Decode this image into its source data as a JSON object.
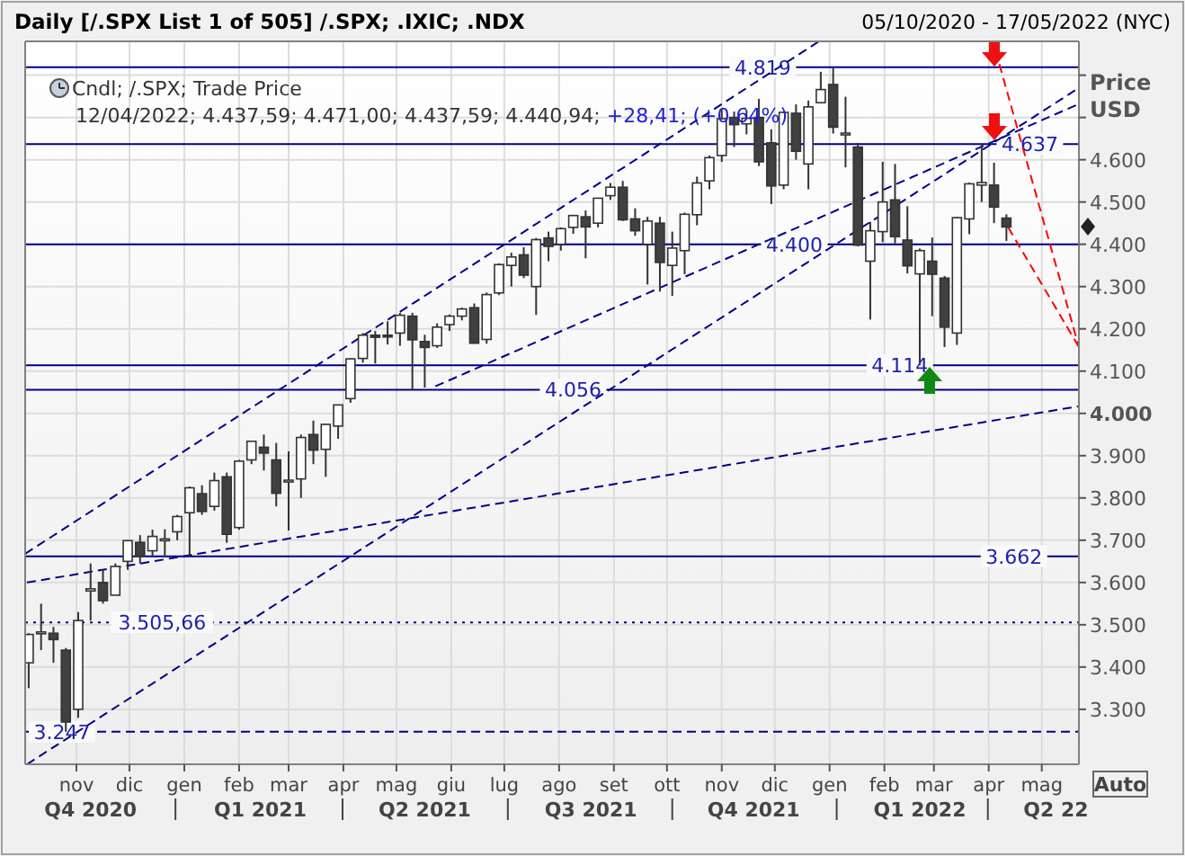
{
  "chart_data": {
    "type": "candlestick",
    "title": "Daily [/.SPX List 1 of 505] /.SPX; .IXIC; .NDX",
    "subtitle": "05/10/2020 - 17/05/2022 (NYC)",
    "ylabel": "Price USD",
    "x": [
      "2020-10-05",
      "2020-10-12",
      "2020-10-19",
      "2020-10-26",
      "2020-11-02",
      "2020-11-09",
      "2020-11-16",
      "2020-11-23",
      "2020-11-30",
      "2020-12-07",
      "2020-12-14",
      "2020-12-21",
      "2020-12-28",
      "2021-01-04",
      "2021-01-11",
      "2021-01-18",
      "2021-01-25",
      "2021-02-01",
      "2021-02-08",
      "2021-02-15",
      "2021-02-22",
      "2021-03-01",
      "2021-03-08",
      "2021-03-15",
      "2021-03-22",
      "2021-03-29",
      "2021-04-05",
      "2021-04-12",
      "2021-04-19",
      "2021-04-26",
      "2021-05-03",
      "2021-05-10",
      "2021-05-17",
      "2021-05-24",
      "2021-05-31",
      "2021-06-07",
      "2021-06-14",
      "2021-06-21",
      "2021-06-28",
      "2021-07-05",
      "2021-07-12",
      "2021-07-19",
      "2021-07-26",
      "2021-08-02",
      "2021-08-09",
      "2021-08-16",
      "2021-08-23",
      "2021-08-30",
      "2021-09-06",
      "2021-09-13",
      "2021-09-20",
      "2021-09-27",
      "2021-10-04",
      "2021-10-11",
      "2021-10-18",
      "2021-10-25",
      "2021-11-01",
      "2021-11-08",
      "2021-11-15",
      "2021-11-22",
      "2021-11-29",
      "2021-12-06",
      "2021-12-13",
      "2021-12-20",
      "2021-12-27",
      "2022-01-03",
      "2022-01-10",
      "2022-01-17",
      "2022-01-24",
      "2022-01-31",
      "2022-02-07",
      "2022-02-14",
      "2022-02-21",
      "2022-02-28",
      "2022-03-07",
      "2022-03-14",
      "2022-03-21",
      "2022-03-28",
      "2022-04-04",
      "2022-04-11"
    ],
    "ohlc": [
      [
        3410,
        3480,
        3350,
        3477
      ],
      [
        3480,
        3550,
        3440,
        3483
      ],
      [
        3480,
        3495,
        3410,
        3465
      ],
      [
        3440,
        3445,
        3247,
        3270
      ],
      [
        3300,
        3530,
        3280,
        3510
      ],
      [
        3580,
        3645,
        3510,
        3585
      ],
      [
        3600,
        3630,
        3550,
        3557
      ],
      [
        3570,
        3645,
        3570,
        3638
      ],
      [
        3650,
        3700,
        3630,
        3699
      ],
      [
        3695,
        3712,
        3645,
        3663
      ],
      [
        3675,
        3725,
        3660,
        3709
      ],
      [
        3700,
        3726,
        3660,
        3703
      ],
      [
        3720,
        3760,
        3700,
        3756
      ],
      [
        3765,
        3827,
        3663,
        3824
      ],
      [
        3810,
        3830,
        3760,
        3768
      ],
      [
        3780,
        3860,
        3770,
        3841
      ],
      [
        3850,
        3860,
        3694,
        3714
      ],
      [
        3730,
        3890,
        3725,
        3887
      ],
      [
        3890,
        3935,
        3880,
        3934
      ],
      [
        3920,
        3950,
        3865,
        3906
      ],
      [
        3890,
        3930,
        3780,
        3811
      ],
      [
        3840,
        3910,
        3723,
        3842
      ],
      [
        3845,
        3950,
        3800,
        3943
      ],
      [
        3950,
        3983,
        3880,
        3913
      ],
      [
        3915,
        3975,
        3850,
        3974
      ],
      [
        3970,
        4020,
        3940,
        4020
      ],
      [
        4035,
        4130,
        4025,
        4129
      ],
      [
        4130,
        4190,
        4120,
        4185
      ],
      [
        4185,
        4195,
        4118,
        4180
      ],
      [
        4185,
        4218,
        4163,
        4181
      ],
      [
        4190,
        4238,
        4160,
        4232
      ],
      [
        4230,
        4238,
        4056,
        4174
      ],
      [
        4170,
        4186,
        4061,
        4156
      ],
      [
        4160,
        4213,
        4155,
        4204
      ],
      [
        4210,
        4234,
        4195,
        4230
      ],
      [
        4230,
        4250,
        4220,
        4247
      ],
      [
        4250,
        4260,
        4165,
        4166
      ],
      [
        4175,
        4286,
        4165,
        4281
      ],
      [
        4285,
        4355,
        4280,
        4352
      ],
      [
        4350,
        4380,
        4300,
        4370
      ],
      [
        4375,
        4393,
        4320,
        4327
      ],
      [
        4300,
        4415,
        4233,
        4411
      ],
      [
        4415,
        4430,
        4360,
        4395
      ],
      [
        4400,
        4440,
        4385,
        4437
      ],
      [
        4440,
        4470,
        4425,
        4468
      ],
      [
        4465,
        4480,
        4367,
        4441
      ],
      [
        4450,
        4510,
        4440,
        4509
      ],
      [
        4515,
        4545,
        4505,
        4535
      ],
      [
        4535,
        4550,
        4455,
        4458
      ],
      [
        4460,
        4485,
        4420,
        4432
      ],
      [
        4400,
        4465,
        4305,
        4455
      ],
      [
        4450,
        4465,
        4288,
        4357
      ],
      [
        4350,
        4430,
        4278,
        4391
      ],
      [
        4385,
        4475,
        4329,
        4471
      ],
      [
        4470,
        4560,
        4445,
        4545
      ],
      [
        4550,
        4610,
        4530,
        4605
      ],
      [
        4610,
        4718,
        4595,
        4697
      ],
      [
        4700,
        4714,
        4630,
        4683
      ],
      [
        4685,
        4718,
        4660,
        4698
      ],
      [
        4700,
        4744,
        4585,
        4595
      ],
      [
        4640,
        4672,
        4495,
        4538
      ],
      [
        4540,
        4713,
        4530,
        4712
      ],
      [
        4710,
        4731,
        4600,
        4620
      ],
      [
        4590,
        4740,
        4530,
        4725
      ],
      [
        4735,
        4808,
        4733,
        4766
      ],
      [
        4778,
        4819,
        4662,
        4677
      ],
      [
        4660,
        4749,
        4582,
        4663
      ],
      [
        4630,
        4640,
        4395,
        4398
      ],
      [
        4360,
        4453,
        4222,
        4432
      ],
      [
        4430,
        4595,
        4405,
        4500
      ],
      [
        4505,
        4590,
        4402,
        4418
      ],
      [
        4410,
        4490,
        4331,
        4349
      ],
      [
        4330,
        4390,
        4114,
        4385
      ],
      [
        4360,
        4416,
        4230,
        4329
      ],
      [
        4320,
        4325,
        4157,
        4204
      ],
      [
        4190,
        4465,
        4162,
        4463
      ],
      [
        4460,
        4546,
        4424,
        4543
      ],
      [
        4540,
        4637,
        4500,
        4546
      ],
      [
        4540,
        4593,
        4450,
        4488
      ],
      [
        4462,
        4471,
        4408,
        4441
      ]
    ],
    "xlim": [
      "2020-10-03",
      "2022-05-22"
    ],
    "xticks": [
      {
        "value": "2020-11-01",
        "label": "nov"
      },
      {
        "value": "2020-12-01",
        "label": "dic"
      },
      {
        "value": "2021-01-01",
        "label": "gen"
      },
      {
        "value": "2021-02-01",
        "label": "feb"
      },
      {
        "value": "2021-03-01",
        "label": "mar"
      },
      {
        "value": "2021-04-01",
        "label": "apr"
      },
      {
        "value": "2021-05-01",
        "label": "mag"
      },
      {
        "value": "2021-06-01",
        "label": "giu"
      },
      {
        "value": "2021-07-01",
        "label": "lug"
      },
      {
        "value": "2021-08-01",
        "label": "ago"
      },
      {
        "value": "2021-09-01",
        "label": "set"
      },
      {
        "value": "2021-10-01",
        "label": "ott"
      },
      {
        "value": "2021-11-01",
        "label": "nov"
      },
      {
        "value": "2021-12-01",
        "label": "dic"
      },
      {
        "value": "2022-01-01",
        "label": "gen"
      },
      {
        "value": "2022-02-01",
        "label": "feb"
      },
      {
        "value": "2022-03-01",
        "label": "mar"
      },
      {
        "value": "2022-04-01",
        "label": "apr"
      },
      {
        "value": "2022-05-01",
        "label": "mag"
      }
    ],
    "x2lim": [
      "2020-10-03",
      "2022-05-22"
    ],
    "x2ticks": [
      {
        "value": "2020-11-09",
        "label": "Q4 2020"
      },
      {
        "value": "2021-02-13",
        "label": "Q1 2021"
      },
      {
        "value": "2021-05-17",
        "label": "Q2 2021"
      },
      {
        "value": "2021-08-19",
        "label": "Q3 2021"
      },
      {
        "value": "2021-11-19",
        "label": "Q4 2021"
      },
      {
        "value": "2022-02-21",
        "label": "Q1 2022"
      },
      {
        "value": "2022-05-09",
        "label": "Q2 22"
      }
    ],
    "ylim": [
      3170,
      4880
    ],
    "yticks": [
      {
        "value": 3300,
        "label": "3.300"
      },
      {
        "value": 3400,
        "label": "3.400"
      },
      {
        "value": 3500,
        "label": "3.500"
      },
      {
        "value": 3600,
        "label": "3.600"
      },
      {
        "value": 3700,
        "label": "3.700"
      },
      {
        "value": 3800,
        "label": "3.800"
      },
      {
        "value": 3900,
        "label": "3.900"
      },
      {
        "value": 4000,
        "label": "4.000"
      },
      {
        "value": 4100,
        "label": "4.100"
      },
      {
        "value": 4200,
        "label": "4.200"
      },
      {
        "value": 4300,
        "label": "4.300"
      },
      {
        "value": 4400,
        "label": "4.400"
      },
      {
        "value": 4500,
        "label": "4.500"
      },
      {
        "value": 4600,
        "label": "4.600"
      },
      {
        "value": 4700,
        "label": null
      },
      {
        "value": 4800,
        "label": null
      }
    ],
    "grid": true,
    "series": [
      {
        "type": "line",
        "color": "#00008b",
        "line_style": "dashed",
        "x": [
          "2020-10-03",
          "2021-12-26"
        ],
        "values": [
          3668,
          4880
        ]
      },
      {
        "type": "line",
        "color": "#00008b",
        "line_style": "dashed",
        "x": [
          "2020-10-04",
          "2022-05-22"
        ],
        "values": [
          3170,
          4770
        ]
      },
      {
        "type": "line",
        "color": "#00008b",
        "line_style": "dashed",
        "x": [
          "2021-05-23",
          "2022-05-22"
        ],
        "values": [
          4064,
          4732
        ]
      },
      {
        "type": "line",
        "color": "#00008b",
        "line_style": "dashed",
        "x": [
          "2020-10-04",
          "2022-05-22"
        ],
        "values": [
          3600,
          4017
        ]
      },
      {
        "type": "line",
        "color": "#ff0000",
        "line_style": "dashed",
        "x": [
          "2022-04-07",
          "2022-05-22"
        ],
        "values": [
          4826,
          4157
        ]
      },
      {
        "type": "line",
        "color": "#ff0000",
        "line_style": "dashed",
        "x": [
          "2022-04-12",
          "2022-05-22"
        ],
        "values": [
          4440,
          4157
        ]
      }
    ],
    "ref_lines": [
      {
        "axis": "y",
        "value": 4819,
        "label": "4.819",
        "color": "#00008b",
        "line_style": "solid"
      },
      {
        "axis": "y",
        "value": 4637,
        "label": "4.637",
        "color": "#00008b",
        "line_style": "solid"
      },
      {
        "axis": "y",
        "value": 4400,
        "label": "4.400",
        "color": "#00008b",
        "line_style": "solid"
      },
      {
        "axis": "y",
        "value": 4114,
        "label": "4.114",
        "color": "#00008b",
        "line_style": "solid"
      },
      {
        "axis": "y",
        "value": 4056,
        "label": "4.056",
        "color": "#00008b",
        "line_style": "solid"
      },
      {
        "axis": "y",
        "value": 3662,
        "label": "3.662",
        "color": "#00008b",
        "line_style": "solid"
      },
      {
        "axis": "y",
        "value": 3505.66,
        "label": "3.505,66",
        "color": "#00008b",
        "line_style": "dotted"
      },
      {
        "axis": "y",
        "value": 3247,
        "label": "3.247",
        "color": "#00008b",
        "line_style": "dashed"
      }
    ],
    "annotations": [
      "Cndl; /.SPX; Trade Price",
      "12/04/2022; 4.437,59; 4.471,00; 4.437,59; 4.440,94;",
      "+28,41; (+0,64%)",
      "Auto"
    ]
  }
}
